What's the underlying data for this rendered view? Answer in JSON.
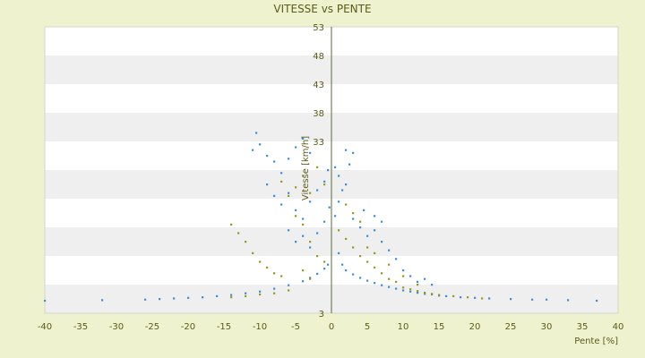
{
  "chart_data": {
    "type": "scatter",
    "title": "VITESSE vs PENTE",
    "xlabel": "Pente [%]",
    "ylabel": "Vitesse [km/h]",
    "xlim": [
      -40,
      40
    ],
    "ylim": [
      3,
      53
    ],
    "x_ticks": [
      -40,
      -35,
      -30,
      -25,
      -20,
      -15,
      -10,
      -5,
      0,
      5,
      10,
      15,
      20,
      25,
      30,
      35,
      40
    ],
    "y_ticks": [
      3,
      8,
      13,
      18,
      23,
      28,
      33,
      38,
      43,
      48,
      53
    ],
    "y_tick_labels_shown": [
      "3",
      "",
      "",
      "",
      "",
      "",
      "33",
      "38",
      "43",
      "48",
      "53"
    ],
    "grid": "horizontal alternating bands",
    "legend": "none",
    "series": [
      {
        "color": "#3b8fd9",
        "points": [
          [
            -40,
            5.2
          ],
          [
            -32,
            5.3
          ],
          [
            -26,
            5.4
          ],
          [
            -24,
            5.5
          ],
          [
            -22,
            5.6
          ],
          [
            -20,
            5.7
          ],
          [
            -18,
            5.8
          ],
          [
            -16,
            6.0
          ],
          [
            -14,
            6.2
          ],
          [
            -12,
            6.5
          ],
          [
            -10,
            6.8
          ],
          [
            -8,
            7.3
          ],
          [
            -6,
            7.9
          ],
          [
            -4,
            8.6
          ],
          [
            -3,
            9.2
          ],
          [
            -2,
            9.9
          ],
          [
            -1,
            10.8
          ],
          [
            -0.5,
            11.5
          ],
          [
            -11,
            31.5
          ],
          [
            -10.5,
            34.5
          ],
          [
            -10,
            32.5
          ],
          [
            -9,
            30.5
          ],
          [
            -8,
            29.5
          ],
          [
            -7,
            27.5
          ],
          [
            -6,
            30.0
          ],
          [
            -5,
            32.0
          ],
          [
            -4,
            33.5
          ],
          [
            -3,
            31.0
          ],
          [
            -9,
            25.5
          ],
          [
            -8,
            23.5
          ],
          [
            -7,
            22.0
          ],
          [
            -6,
            24.0
          ],
          [
            -5,
            21.0
          ],
          [
            -4,
            19.5
          ],
          [
            -3,
            22.5
          ],
          [
            -2,
            24.5
          ],
          [
            -1,
            26.0
          ],
          [
            -0.5,
            28.0
          ],
          [
            -6,
            17.5
          ],
          [
            -5,
            15.5
          ],
          [
            -4,
            16.5
          ],
          [
            -3,
            14.5
          ],
          [
            -2,
            17.0
          ],
          [
            -1,
            19.0
          ],
          [
            -0.3,
            21.5
          ],
          [
            0.5,
            28.5
          ],
          [
            1,
            27.0
          ],
          [
            1.5,
            24.5
          ],
          [
            2,
            25.5
          ],
          [
            2.5,
            29.0
          ],
          [
            3,
            31.0
          ],
          [
            2,
            31.5
          ],
          [
            1,
            22.5
          ],
          [
            0.5,
            20.0
          ],
          [
            3,
            19.5
          ],
          [
            4,
            18.0
          ],
          [
            4.5,
            21.0
          ],
          [
            5,
            16.5
          ],
          [
            6,
            17.5
          ],
          [
            7,
            15.5
          ],
          [
            8,
            14.0
          ],
          [
            9,
            12.5
          ],
          [
            6,
            20.0
          ],
          [
            7,
            19.0
          ],
          [
            1,
            13.5
          ],
          [
            1.5,
            11.5
          ],
          [
            2,
            10.5
          ],
          [
            3,
            9.8
          ],
          [
            4,
            9.2
          ],
          [
            5,
            8.7
          ],
          [
            6,
            8.3
          ],
          [
            7,
            7.9
          ],
          [
            8,
            7.6
          ],
          [
            9,
            7.3
          ],
          [
            10,
            7.0
          ],
          [
            11,
            6.8
          ],
          [
            12,
            6.6
          ],
          [
            13,
            6.4
          ],
          [
            14,
            6.3
          ],
          [
            15,
            6.1
          ],
          [
            16,
            6.0
          ],
          [
            18,
            5.8
          ],
          [
            20,
            5.7
          ],
          [
            22,
            5.6
          ],
          [
            25,
            5.5
          ],
          [
            28,
            5.4
          ],
          [
            30,
            5.4
          ],
          [
            33,
            5.3
          ],
          [
            37,
            5.2
          ],
          [
            10,
            10.5
          ],
          [
            11,
            9.5
          ],
          [
            12,
            8.5
          ],
          [
            13,
            9.0
          ],
          [
            14,
            8.0
          ]
        ]
      },
      {
        "color": "#9a9a18",
        "points": [
          [
            -14,
            5.8
          ],
          [
            -12,
            6.0
          ],
          [
            -10,
            6.3
          ],
          [
            -8,
            6.5
          ],
          [
            -6,
            7.0
          ],
          [
            -14,
            18.5
          ],
          [
            -13,
            17.0
          ],
          [
            -12,
            15.5
          ],
          [
            -11,
            13.5
          ],
          [
            -10,
            12.0
          ],
          [
            -9,
            11.0
          ],
          [
            -8,
            10.0
          ],
          [
            -7,
            9.5
          ],
          [
            -7,
            26.0
          ],
          [
            -6,
            23.5
          ],
          [
            -5,
            25.0
          ],
          [
            -4,
            27.0
          ],
          [
            -3,
            24.0
          ],
          [
            -2,
            28.5
          ],
          [
            -1,
            25.5
          ],
          [
            -5,
            20.0
          ],
          [
            -4,
            18.5
          ],
          [
            -3,
            15.5
          ],
          [
            -2,
            13.0
          ],
          [
            -1,
            12.0
          ],
          [
            -4,
            10.5
          ],
          [
            -3,
            9.0
          ],
          [
            1,
            17.5
          ],
          [
            2,
            16.0
          ],
          [
            3,
            14.5
          ],
          [
            4,
            13.0
          ],
          [
            5,
            12.0
          ],
          [
            6,
            11.0
          ],
          [
            7,
            10.0
          ],
          [
            8,
            9.0
          ],
          [
            9,
            8.5
          ],
          [
            10,
            7.5
          ],
          [
            11,
            7.2
          ],
          [
            12,
            6.9
          ],
          [
            13,
            6.6
          ],
          [
            14,
            6.4
          ],
          [
            15,
            6.2
          ],
          [
            17,
            6.0
          ],
          [
            19,
            5.8
          ],
          [
            21,
            5.6
          ],
          [
            2,
            22.0
          ],
          [
            3,
            20.5
          ],
          [
            4,
            19.0
          ],
          [
            5,
            14.5
          ],
          [
            6,
            13.5
          ],
          [
            8,
            11.5
          ],
          [
            10,
            9.5
          ],
          [
            12,
            8.0
          ]
        ]
      }
    ]
  }
}
